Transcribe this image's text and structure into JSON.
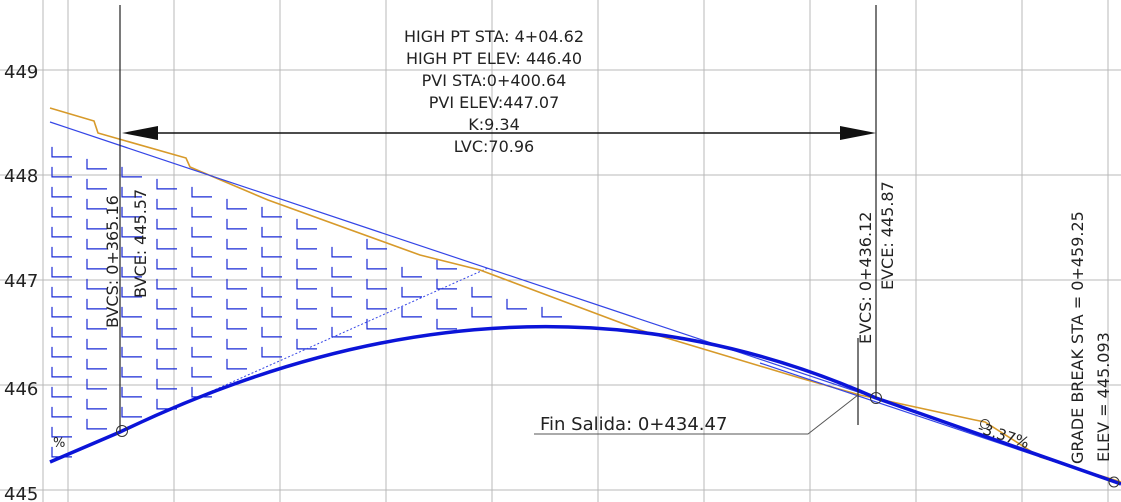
{
  "colors": {
    "grid": "#b8b8b8",
    "text": "#222222",
    "curve": "#0b14d8",
    "tangent": "#3546e6",
    "hatch": "#1a2ad6",
    "ground": "#d79a2a",
    "vertical": "#222222"
  },
  "axis": {
    "y_ticks": [
      "449",
      "448",
      "447",
      "446",
      "445"
    ]
  },
  "high_point": {
    "sta": "HIGH PT STA:  4+04.62",
    "elev": "HIGH PT ELEV:  446.40"
  },
  "pvi": {
    "sta": "PVI STA:0+400.64",
    "elev": "PVI ELEV:447.07"
  },
  "curve": {
    "k": "K:9.34",
    "lvc": "LVC:70.96"
  },
  "bvc": {
    "sta": "BVCS: 0+365.16",
    "elev": "BVCE: 445.57"
  },
  "evc": {
    "sta": "EVCS: 0+436.12",
    "elev": "EVCE: 445.87"
  },
  "grade_break": {
    "sta": "GRADE BREAK STA  =  0+459.25",
    "elev": "ELEV  =  445.093"
  },
  "callout": {
    "fin_salida": "Fin Salida:  0+434.47"
  },
  "grades": {
    "right": "-3.37%",
    "left_fragment": "%"
  }
}
